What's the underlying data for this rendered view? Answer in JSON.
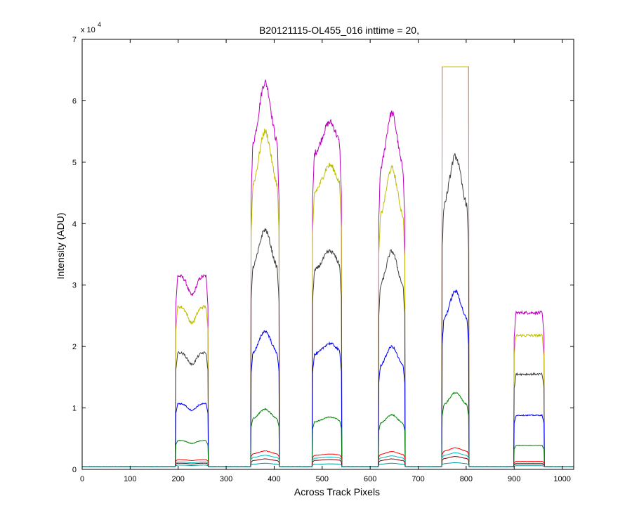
{
  "chart_data": {
    "type": "line",
    "title": "B20121115-OL455_016 inttime = 20,",
    "xlabel": "Across Track Pixels",
    "ylabel": "Intensity (ADU)",
    "y_multiplier_label": "x 10",
    "y_multiplier_exponent": "4",
    "xlim": [
      0,
      1024
    ],
    "ylim": [
      0,
      70000
    ],
    "x_ticks": [
      0,
      100,
      200,
      300,
      400,
      500,
      600,
      700,
      800,
      900,
      1000
    ],
    "y_ticks": [
      0,
      10000,
      20000,
      30000,
      40000,
      50000,
      60000,
      70000
    ],
    "y_tick_labels": [
      "0",
      "1",
      "2",
      "3",
      "4",
      "5",
      "6",
      "7"
    ],
    "x_tick_labels": [
      "0",
      "100",
      "200",
      "300",
      "400",
      "500",
      "600",
      "700",
      "800",
      "900",
      "1000"
    ],
    "background_level": 450,
    "blocks": [
      {
        "start": 195,
        "end": 262,
        "shape": "dip"
      },
      {
        "start": 352,
        "end": 410,
        "shape": "peak"
      },
      {
        "start": 480,
        "end": 540,
        "shape": "slight"
      },
      {
        "start": 618,
        "end": 672,
        "shape": "peak"
      },
      {
        "start": 750,
        "end": 805,
        "shape": "peak"
      },
      {
        "start": 900,
        "end": 962,
        "shape": "flat"
      }
    ],
    "series": [
      {
        "color": "#bf00bf",
        "levels": [
          31500,
          63000,
          56500,
          58000,
          65535,
          25500
        ]
      },
      {
        "color": "#bfbf00",
        "levels": [
          26500,
          55000,
          49500,
          49000,
          65535,
          21800
        ]
      },
      {
        "color": "#404040",
        "levels": [
          19000,
          39000,
          35500,
          35500,
          51000,
          15500
        ]
      },
      {
        "color": "#0000ff",
        "levels": [
          10700,
          22500,
          20500,
          20000,
          29000,
          8800
        ]
      },
      {
        "color": "#008000",
        "levels": [
          4700,
          9800,
          8500,
          8900,
          12500,
          3900
        ]
      },
      {
        "color": "#ff0000",
        "levels": [
          1600,
          3000,
          2500,
          2900,
          3500,
          1300
        ]
      },
      {
        "color": "#00bfbf",
        "levels": [
          1200,
          2300,
          2000,
          2200,
          2700,
          1000
        ]
      },
      {
        "color": "#800000",
        "levels": [
          1000,
          1700,
          1600,
          1700,
          2100,
          900
        ]
      },
      {
        "color": "#00a0a0",
        "levels": [
          700,
          1000,
          900,
          1000,
          1100,
          600
        ]
      }
    ]
  }
}
